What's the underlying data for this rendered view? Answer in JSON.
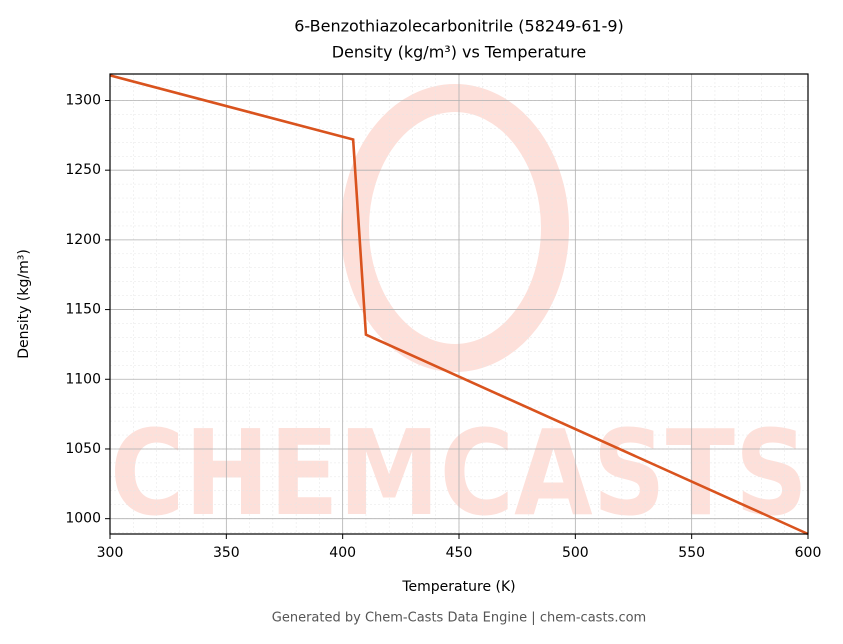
{
  "chart_data": {
    "type": "line",
    "title": "6-Benzothiazolecarbonitrile (58249-61-9)",
    "subtitle": "Density (kg/m³) vs Temperature",
    "x_label": "Temperature (K)",
    "y_label": "Density (kg/m³)",
    "x": [
      300,
      404.5,
      410,
      600
    ],
    "series": [
      {
        "name": "Density",
        "color": "#d9531e",
        "values": [
          1318,
          1272,
          1132,
          989
        ]
      }
    ],
    "xlim": [
      300,
      600
    ],
    "xticks": [
      300,
      350,
      400,
      450,
      500,
      550,
      600
    ],
    "ylim": [
      989,
      1319
    ],
    "yticks": [
      1000,
      1050,
      1100,
      1150,
      1200,
      1250,
      1300
    ],
    "grid": true,
    "minor_grid": true,
    "watermark": "CHEMCASTS",
    "footer": "Generated by Chem-Casts Data Engine | chem-casts.com"
  }
}
